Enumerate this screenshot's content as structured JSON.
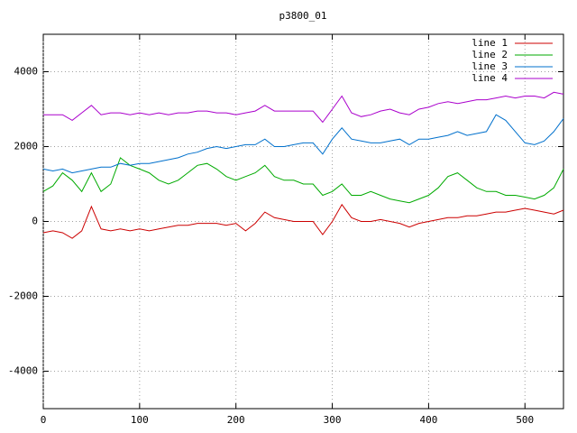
{
  "chart_data": {
    "type": "line",
    "title": "p3800_01",
    "x": [
      0,
      10,
      20,
      30,
      40,
      50,
      60,
      70,
      80,
      90,
      100,
      110,
      120,
      130,
      140,
      150,
      160,
      170,
      180,
      190,
      200,
      210,
      220,
      230,
      240,
      250,
      260,
      270,
      280,
      290,
      300,
      310,
      320,
      330,
      340,
      350,
      360,
      370,
      380,
      390,
      400,
      410,
      420,
      430,
      440,
      450,
      460,
      470,
      480,
      490,
      500,
      510,
      520,
      530,
      540
    ],
    "series": [
      {
        "name": "line 1",
        "color": "#cc0000",
        "values": [
          -300,
          -250,
          -300,
          -450,
          -250,
          400,
          -200,
          -250,
          -200,
          -250,
          -200,
          -250,
          -200,
          -150,
          -100,
          -100,
          -50,
          -50,
          -50,
          -100,
          -50,
          -250,
          -50,
          250,
          100,
          50,
          0,
          0,
          0,
          -350,
          0,
          450,
          100,
          0,
          0,
          50,
          0,
          -50,
          -150,
          -50,
          0,
          50,
          100,
          100,
          150,
          150,
          200,
          250,
          250,
          300,
          350,
          300,
          250,
          200,
          300
        ]
      },
      {
        "name": "line 2",
        "color": "#00aa00",
        "values": [
          800,
          950,
          1300,
          1100,
          800,
          1300,
          800,
          1000,
          1700,
          1500,
          1400,
          1300,
          1100,
          1000,
          1100,
          1300,
          1500,
          1550,
          1400,
          1200,
          1100,
          1200,
          1300,
          1500,
          1200,
          1100,
          1100,
          1000,
          1000,
          700,
          800,
          1000,
          700,
          700,
          800,
          700,
          600,
          550,
          500,
          600,
          700,
          900,
          1200,
          1300,
          1100,
          900,
          800,
          800,
          700,
          700,
          650,
          600,
          700,
          900,
          1400
        ]
      },
      {
        "name": "line 3",
        "color": "#0070cc",
        "values": [
          1400,
          1350,
          1400,
          1300,
          1350,
          1400,
          1450,
          1450,
          1550,
          1500,
          1550,
          1550,
          1600,
          1650,
          1700,
          1800,
          1850,
          1950,
          2000,
          1950,
          2000,
          2050,
          2050,
          2200,
          2000,
          2000,
          2050,
          2100,
          2100,
          1800,
          2200,
          2500,
          2200,
          2150,
          2100,
          2100,
          2150,
          2200,
          2050,
          2200,
          2200,
          2250,
          2300,
          2400,
          2300,
          2350,
          2400,
          2850,
          2700,
          2400,
          2100,
          2050,
          2150,
          2400,
          2750
        ]
      },
      {
        "name": "line 4",
        "color": "#aa00cc",
        "values": [
          2850,
          2850,
          2850,
          2700,
          2900,
          3100,
          2850,
          2900,
          2900,
          2850,
          2900,
          2850,
          2900,
          2850,
          2900,
          2900,
          2950,
          2950,
          2900,
          2900,
          2850,
          2900,
          2950,
          3100,
          2950,
          2950,
          2950,
          2950,
          2950,
          2650,
          3000,
          3350,
          2900,
          2800,
          2850,
          2950,
          3000,
          2900,
          2850,
          3000,
          3050,
          3150,
          3200,
          3150,
          3200,
          3250,
          3250,
          3300,
          3350,
          3300,
          3350,
          3350,
          3300,
          3450,
          3400
        ]
      }
    ],
    "xlim": [
      0,
      540
    ],
    "ylim": [
      -5000,
      5000
    ],
    "xticks": [
      0,
      100,
      200,
      300,
      400,
      500
    ],
    "yticks": [
      -4000,
      -2000,
      0,
      2000,
      4000
    ],
    "grid": true,
    "legend": "top-right"
  }
}
